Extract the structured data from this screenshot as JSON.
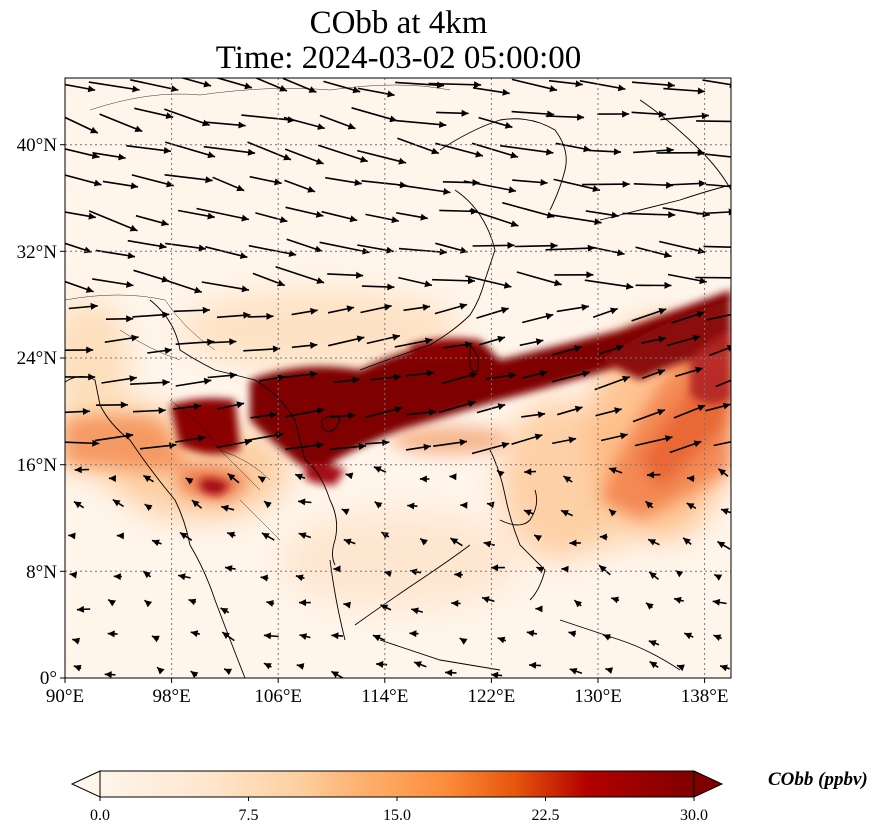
{
  "title": {
    "line1": "CObb at 4km",
    "line2": "Time: 2024-03-02 05:00:00"
  },
  "axes": {
    "x_ticks": [
      "90°E",
      "98°E",
      "106°E",
      "114°E",
      "122°E",
      "130°E",
      "138°E"
    ],
    "y_ticks": [
      "40°N",
      "32°N",
      "24°N",
      "16°N",
      "8°N",
      "0°"
    ]
  },
  "colorbar": {
    "label": "CObb (ppbv)",
    "ticks": [
      "0.0",
      "7.5",
      "15.0",
      "22.5",
      "30.0"
    ],
    "colors": [
      "#fff5eb",
      "#fdd9b0",
      "#fdae6b",
      "#f16913",
      "#d94801",
      "#a50f15",
      "#7f0000"
    ]
  },
  "map": {
    "lon_range": [
      90,
      140
    ],
    "lat_range": [
      0,
      45
    ],
    "gridlines": "dotted",
    "plume_color": "#7f0000",
    "background_color": "#fff5eb",
    "wind_vectors": "black arrows"
  }
}
